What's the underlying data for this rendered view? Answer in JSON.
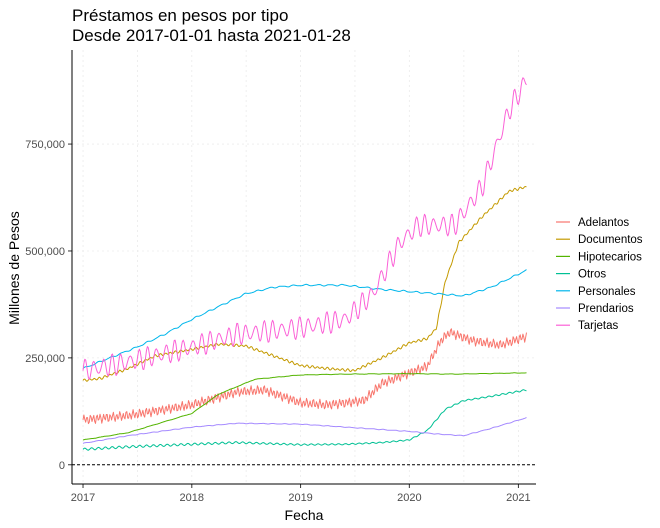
{
  "chart_data": {
    "type": "line",
    "title": "Préstamos en pesos por tipo",
    "subtitle": "Desde 2017-01-01 hasta 2021-01-28",
    "xlabel": "Fecha",
    "ylabel": "Millones de Pesos",
    "xlim": [
      "2016-11-25",
      "2021-03-01"
    ],
    "ylim": [
      -45000,
      970000
    ],
    "x_ticks": [
      {
        "date": "2017-01-01",
        "label": "2017"
      },
      {
        "date": "2018-01-01",
        "label": "2018"
      },
      {
        "date": "2019-01-01",
        "label": "2019"
      },
      {
        "date": "2020-01-01",
        "label": "2020"
      },
      {
        "date": "2021-01-01",
        "label": "2021"
      }
    ],
    "y_ticks": [
      {
        "value": 0,
        "label": "0"
      },
      {
        "value": 250000,
        "label": "250,000"
      },
      {
        "value": 500000,
        "label": "500,000"
      },
      {
        "value": 750000,
        "label": "750,000"
      }
    ],
    "reference_line": {
      "y": 0,
      "style": "dashed",
      "color": "#000000"
    },
    "legend_position": "right",
    "grid": true,
    "series": [
      {
        "name": "Adelantos",
        "color": "#F8766D",
        "x": [
          "2017-01-01",
          "2017-06-01",
          "2018-01-01",
          "2018-06-01",
          "2018-09-01",
          "2019-01-01",
          "2019-04-01",
          "2019-08-01",
          "2019-10-01",
          "2020-01-01",
          "2020-03-01",
          "2020-04-15",
          "2020-05-15",
          "2020-08-01",
          "2020-11-01",
          "2021-01-28"
        ],
        "values": [
          105000,
          115000,
          140000,
          170000,
          175000,
          145000,
          140000,
          150000,
          190000,
          215000,
          230000,
          290000,
          310000,
          290000,
          280000,
          300000
        ]
      },
      {
        "name": "Documentos",
        "color": "#C49A00",
        "x": [
          "2017-01-01",
          "2017-03-01",
          "2017-06-01",
          "2017-09-01",
          "2018-01-01",
          "2018-04-01",
          "2018-07-01",
          "2018-10-01",
          "2019-01-01",
          "2019-04-01",
          "2019-07-01",
          "2019-10-01",
          "2020-01-01",
          "2020-03-01",
          "2020-04-01",
          "2020-05-01",
          "2020-06-15",
          "2020-09-01",
          "2020-12-01",
          "2021-01-28"
        ],
        "values": [
          197000,
          202000,
          225000,
          255000,
          270000,
          282000,
          278000,
          255000,
          232000,
          225000,
          220000,
          250000,
          285000,
          295000,
          320000,
          430000,
          520000,
          580000,
          640000,
          650000
        ]
      },
      {
        "name": "Hipotecarios",
        "color": "#53B400",
        "x": [
          "2017-01-01",
          "2017-06-01",
          "2018-01-01",
          "2018-04-01",
          "2018-08-01",
          "2019-01-01",
          "2019-06-01",
          "2020-01-01",
          "2020-06-01",
          "2021-01-28"
        ],
        "values": [
          58000,
          75000,
          120000,
          165000,
          200000,
          210000,
          212000,
          213000,
          212000,
          215000
        ]
      },
      {
        "name": "Otros",
        "color": "#00C094",
        "x": [
          "2017-01-01",
          "2017-06-01",
          "2018-01-01",
          "2018-06-01",
          "2019-01-01",
          "2019-06-01",
          "2019-10-01",
          "2020-01-01",
          "2020-03-01",
          "2020-05-01",
          "2020-07-01",
          "2020-10-01",
          "2021-01-28"
        ],
        "values": [
          36000,
          42000,
          48000,
          52000,
          47000,
          48000,
          52000,
          58000,
          80000,
          130000,
          150000,
          160000,
          175000
        ]
      },
      {
        "name": "Personales",
        "color": "#00B6EB",
        "x": [
          "2017-01-01",
          "2017-04-01",
          "2017-07-01",
          "2017-10-01",
          "2018-01-01",
          "2018-04-01",
          "2018-07-01",
          "2018-10-01",
          "2019-01-01",
          "2019-06-01",
          "2019-10-01",
          "2020-01-01",
          "2020-04-01",
          "2020-07-01",
          "2020-10-01",
          "2021-01-28"
        ],
        "values": [
          225000,
          250000,
          275000,
          305000,
          340000,
          370000,
          400000,
          415000,
          420000,
          420000,
          410000,
          405000,
          400000,
          395000,
          415000,
          455000
        ]
      },
      {
        "name": "Prendarios",
        "color": "#A58AFF",
        "x": [
          "2017-01-01",
          "2017-06-01",
          "2018-01-01",
          "2018-06-01",
          "2019-01-01",
          "2019-06-01",
          "2020-01-01",
          "2020-04-01",
          "2020-07-01",
          "2020-10-01",
          "2021-01-28"
        ],
        "values": [
          50000,
          68000,
          88000,
          97000,
          95000,
          88000,
          78000,
          72000,
          68000,
          85000,
          110000
        ]
      },
      {
        "name": "Tarjetas",
        "color": "#FB61D7",
        "x": [
          "2017-01-01",
          "2017-06-01",
          "2018-01-01",
          "2018-06-01",
          "2019-01-01",
          "2019-06-01",
          "2019-09-01",
          "2019-12-01",
          "2020-02-01",
          "2020-06-01",
          "2020-09-01",
          "2020-12-01",
          "2021-01-28"
        ],
        "values": [
          220000,
          240000,
          275000,
          305000,
          320000,
          340000,
          400000,
          520000,
          560000,
          560000,
          650000,
          830000,
          900000
        ]
      }
    ]
  }
}
